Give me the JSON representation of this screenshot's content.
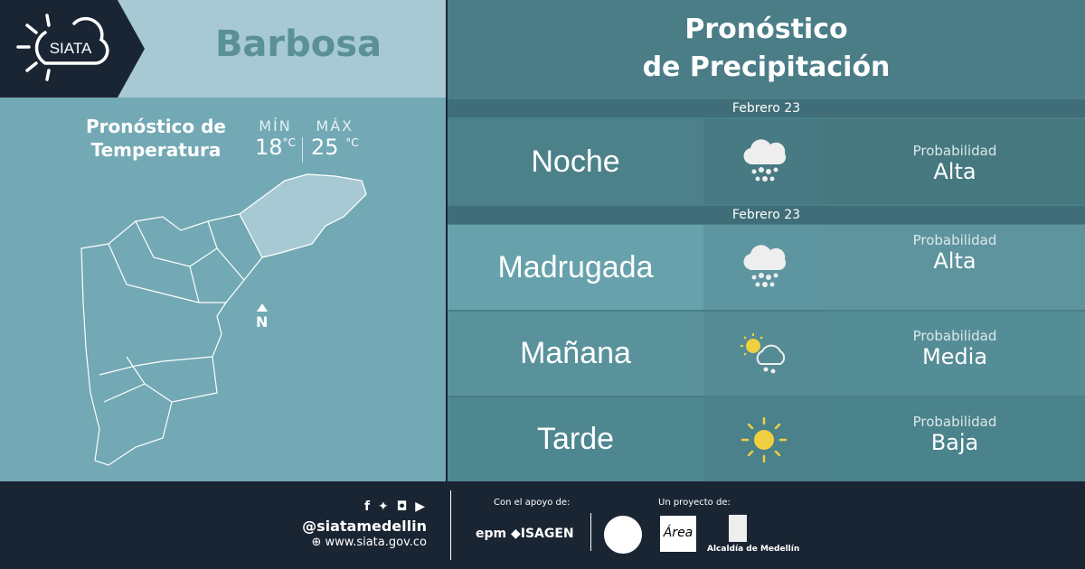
{
  "logo": {
    "text": "SIATA"
  },
  "header": {
    "city": "Barbosa",
    "title_line1": "Pronóstico",
    "title_line2": "de Precipitación"
  },
  "temperature": {
    "title_line1": "Pronóstico de",
    "title_line2": "Temperatura",
    "min_label": "MÍN",
    "min_value": "18",
    "max_label": "MÁX",
    "max_value": "25",
    "unit": "°C"
  },
  "map": {
    "north_label": "N"
  },
  "forecast": [
    {
      "date": "Febrero 23",
      "period": "Noche",
      "icon": "heavy-rain-cloud-icon",
      "prob_label": "Probabilidad",
      "prob_value": "Alta"
    },
    {
      "date": "Febrero 23",
      "period": "Madrugada",
      "icon": "heavy-rain-cloud-icon",
      "prob_label": "Probabilidad",
      "prob_value": "Alta"
    },
    {
      "period": "Mañana",
      "icon": "sun-rain-cloud-icon",
      "prob_label": "Probabilidad",
      "prob_value": "Media"
    },
    {
      "period": "Tarde",
      "icon": "sun-icon",
      "prob_label": "Probabilidad",
      "prob_value": "Baja"
    }
  ],
  "colors": {
    "dark": "#1a2533",
    "sun": "#f0d040"
  },
  "footer": {
    "social_handle": "@siatamedellin",
    "website": "www.siata.gov.co",
    "support_label": "Con el apoyo de:",
    "support_logos": [
      "epm",
      "ISAGEN"
    ],
    "project_label": "Un proyecto de:",
    "project_logos": [
      "Universidad Nacional",
      "Área Metropolitana Valle de Aburrá",
      "Alcaldía de Medellín"
    ],
    "alcaldia": "Alcaldía de Medellín"
  }
}
